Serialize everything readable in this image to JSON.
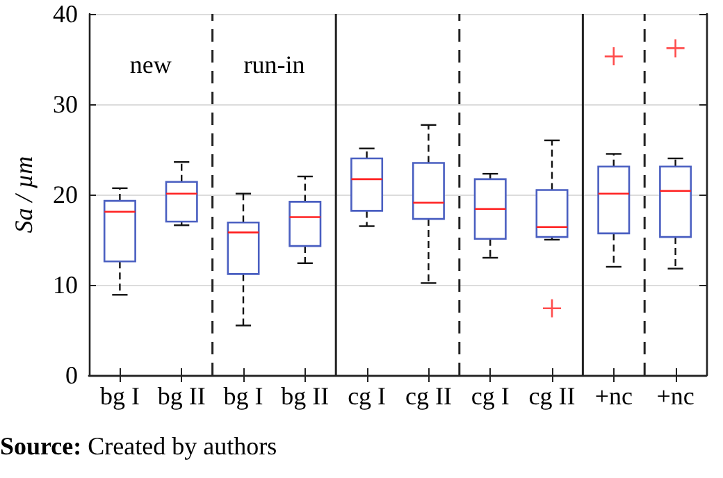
{
  "chart_data": {
    "type": "box",
    "ylabel": "Sa / µm",
    "categories": [
      "bg I",
      "bg II",
      "bg I",
      "bg II",
      "cg I",
      "cg II",
      "cg I",
      "cg II",
      "+nc",
      "+nc"
    ],
    "ylim": [
      0,
      40
    ],
    "yticks": [
      0,
      10,
      20,
      30,
      40
    ],
    "grid": "y",
    "series": [
      {
        "color": "#4a5fc1",
        "boxes": [
          {
            "low": 8.9,
            "q1": 12.6,
            "median": 18.1,
            "q3": 19.3,
            "high": 20.7
          },
          {
            "low": 16.6,
            "q1": 17.0,
            "median": 20.1,
            "q3": 21.4,
            "high": 23.6
          },
          {
            "low": 5.5,
            "q1": 11.2,
            "median": 15.8,
            "q3": 16.9,
            "high": 20.1
          },
          {
            "low": 12.4,
            "q1": 14.3,
            "median": 17.5,
            "q3": 19.2,
            "high": 22.0
          },
          {
            "low": 16.5,
            "q1": 18.2,
            "median": 21.7,
            "q3": 24.0,
            "high": 25.1
          },
          {
            "low": 10.2,
            "q1": 17.3,
            "median": 19.1,
            "q3": 23.5,
            "high": 27.7
          },
          {
            "low": 13.0,
            "q1": 15.1,
            "median": 18.4,
            "q3": 21.7,
            "high": 22.3
          },
          {
            "low": 15.0,
            "q1": 15.3,
            "median": 16.4,
            "q3": 20.5,
            "high": 26.0,
            "outliers": [
              7.4
            ]
          },
          {
            "low": 12.0,
            "q1": 15.7,
            "median": 20.1,
            "q3": 23.1,
            "high": 24.5,
            "outliers": [
              35.3
            ]
          },
          {
            "low": 11.8,
            "q1": 15.3,
            "median": 20.4,
            "q3": 23.1,
            "high": 24.0,
            "outliers": [
              36.2
            ]
          }
        ]
      }
    ],
    "annotations": [
      "new",
      "run-in",
      "Source: Created by authors"
    ]
  }
}
